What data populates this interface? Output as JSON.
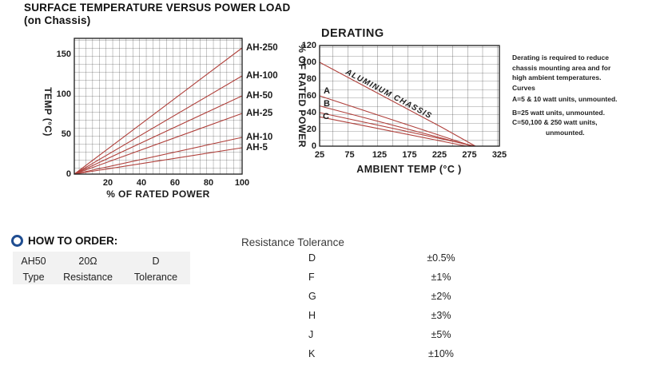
{
  "surface_chart": {
    "title": "SURFACE TEMPERATURE VERSUS POWER LOAD",
    "subtitle": "(on Chassis)",
    "ylabel": "TEMP (°C)",
    "xlabel": "% OF RATED POWER",
    "yticks": [
      "0",
      "50",
      "100",
      "150"
    ],
    "xticks": [
      "20",
      "40",
      "60",
      "80",
      "100"
    ],
    "series_labels": [
      "AH-250",
      "AH-100",
      "AH-50",
      "AH-25",
      "AH-10",
      "AH-5"
    ]
  },
  "derating_chart": {
    "title": "DERATING",
    "ylabel": "% OF RATED POWER",
    "xlabel": "AMBIENT TEMP (°C )",
    "yticks_top_down": [
      "120",
      "100",
      "80",
      "60",
      "40",
      "20",
      "0"
    ],
    "xticks": [
      "25",
      "75",
      "125",
      "175",
      "225",
      "275",
      "325"
    ],
    "curve_labels": [
      "A",
      "B",
      "C"
    ],
    "inline_label": "ALUMINUM CHASSIS"
  },
  "derating_note": {
    "lines": [
      "Derating is required to reduce",
      "chassis mounting area and for",
      "high ambient temperatures.",
      "Curves",
      "A=5 & 10 watt units, unmounted.",
      "B=25 watt units, unmounted.",
      "C=50,100 & 250 watt units,",
      "unmounted."
    ]
  },
  "how_to_order": {
    "heading": "HOW TO ORDER:",
    "example": {
      "type": "AH50",
      "resistance": "20Ω",
      "tolerance": "D"
    },
    "labels": {
      "type": "Type",
      "resistance": "Resistance",
      "tolerance": "Tolerance"
    }
  },
  "tolerance_table": {
    "title": "Resistance Tolerance",
    "rows": [
      {
        "code": "D",
        "value": "±0.5%"
      },
      {
        "code": "F",
        "value": "±1%"
      },
      {
        "code": "G",
        "value": "±2%"
      },
      {
        "code": "H",
        "value": "±3%"
      },
      {
        "code": "J",
        "value": "±5%"
      },
      {
        "code": "K",
        "value": "±10%"
      }
    ]
  },
  "chart_data": [
    {
      "type": "line",
      "title": "SURFACE TEMPERATURE VERSUS POWER LOAD (on Chassis)",
      "xlabel": "% OF RATED POWER",
      "ylabel": "TEMP (°C)",
      "xlim": [
        0,
        100
      ],
      "ylim": [
        0,
        160
      ],
      "grid": true,
      "x": [
        0,
        100
      ],
      "series": [
        {
          "name": "AH-250",
          "values": [
            0,
            158
          ]
        },
        {
          "name": "AH-100",
          "values": [
            0,
            123
          ]
        },
        {
          "name": "AH-50",
          "values": [
            0,
            98
          ]
        },
        {
          "name": "AH-25",
          "values": [
            0,
            76
          ]
        },
        {
          "name": "AH-10",
          "values": [
            0,
            46
          ]
        },
        {
          "name": "AH-5",
          "values": [
            0,
            33
          ]
        }
      ]
    },
    {
      "type": "line",
      "title": "DERATING",
      "xlabel": "AMBIENT TEMP (°C)",
      "ylabel": "% OF RATED POWER",
      "xlim": [
        25,
        350
      ],
      "ylim": [
        0,
        120
      ],
      "grid": true,
      "series": [
        {
          "name": "ALUMINUM CHASSIS",
          "points": [
            [
              25,
              100
            ],
            [
              230,
              22
            ],
            [
              285,
              0
            ]
          ]
        },
        {
          "name": "A",
          "points": [
            [
              25,
              60
            ],
            [
              280,
              0
            ]
          ]
        },
        {
          "name": "B",
          "points": [
            [
              25,
              48
            ],
            [
              280,
              0
            ]
          ]
        },
        {
          "name": "C",
          "points": [
            [
              25,
              40
            ],
            [
              285,
              0
            ]
          ]
        },
        {
          "name": "C lower",
          "points": [
            [
              25,
              35
            ],
            [
              270,
              0
            ]
          ]
        }
      ]
    }
  ],
  "colors": {
    "line_red": "#b0413c",
    "inline_label_blue": "#33339e",
    "bullet_navy": "#1f4d91",
    "order_box_gray": "#f2f2f2",
    "grid_dark": "#333333"
  }
}
